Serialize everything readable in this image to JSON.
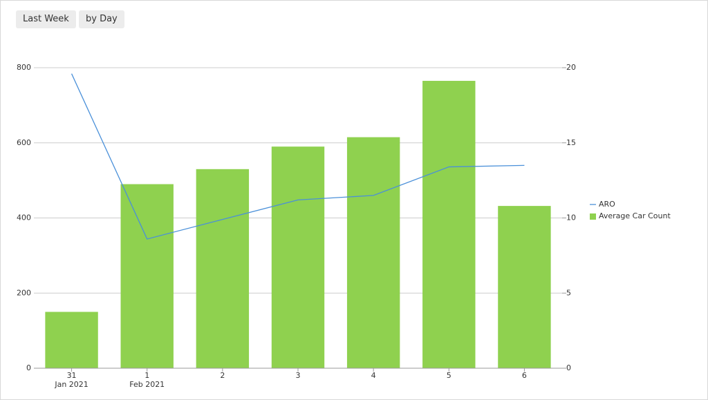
{
  "controls": [
    "Last Week",
    "by Day"
  ],
  "chart_data": {
    "type": "bar-line",
    "categories": [
      "31",
      "1",
      "2",
      "3",
      "4",
      "5",
      "6"
    ],
    "category_sublabels": [
      "Jan 2021",
      "Feb 2021",
      null,
      null,
      null,
      null,
      null
    ],
    "series": [
      {
        "name": "ARO",
        "type": "line",
        "axis": "y2",
        "color": "#4a90d9",
        "values": [
          19.6,
          8.6,
          9.9,
          11.2,
          11.5,
          13.4,
          13.5
        ]
      },
      {
        "name": "Average Car Count",
        "type": "bar",
        "axis": "y",
        "color": "#8fd14f",
        "values": [
          150,
          490,
          530,
          590,
          615,
          765,
          432
        ]
      }
    ],
    "ylim": [
      0,
      800
    ],
    "yticks": [
      0,
      200,
      400,
      600,
      800
    ],
    "y2lim": [
      0,
      20
    ],
    "y2ticks": [
      0,
      5,
      10,
      15,
      20
    ],
    "grid": true,
    "legend": "right"
  }
}
